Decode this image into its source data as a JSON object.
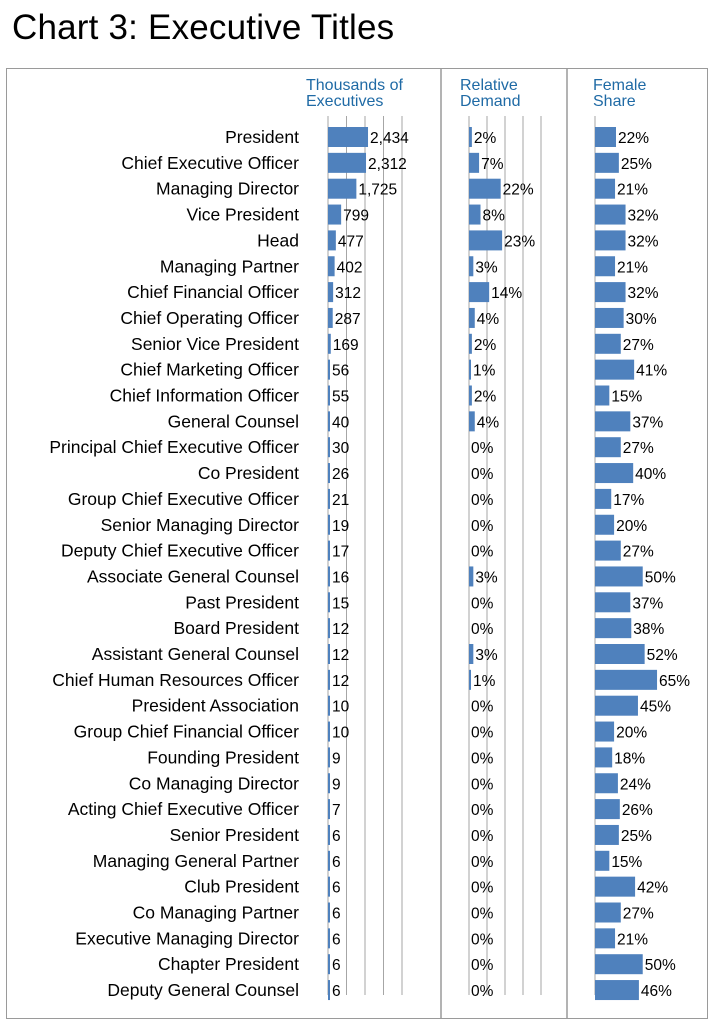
{
  "chart_data": {
    "type": "bar",
    "title": "Chart 3: Executive Titles",
    "categories": [
      "President",
      "Chief Executive Officer",
      "Managing Director",
      "Vice President",
      "Head",
      "Managing Partner",
      "Chief Financial Officer",
      "Chief Operating Officer",
      "Senior Vice President",
      "Chief Marketing Officer",
      "Chief Information Officer",
      "General Counsel",
      "Principal Chief Executive Officer",
      "Co President",
      "Group Chief Executive Officer",
      "Senior Managing Director",
      "Deputy Chief Executive Officer",
      "Associate General Counsel",
      "Past President",
      "Board President",
      "Assistant General Counsel",
      "Chief Human Resources Officer",
      "President Association",
      "Group Chief Financial Officer",
      "Founding President",
      "Co Managing Director",
      "Acting Chief Executive Officer",
      "Senior President",
      "Managing General Partner",
      "Club President",
      "Co Managing Partner",
      "Executive Managing Director",
      "Chapter President",
      "Deputy General Counsel"
    ],
    "series": [
      {
        "name": "Thousands of Executives",
        "values": [
          2434,
          2312,
          1725,
          799,
          477,
          402,
          312,
          287,
          169,
          56,
          55,
          40,
          30,
          26,
          21,
          19,
          17,
          16,
          15,
          12,
          12,
          12,
          10,
          10,
          9,
          9,
          7,
          6,
          6,
          6,
          6,
          6,
          6,
          6
        ],
        "labels": [
          "2,434",
          "2,312",
          "1,725",
          "799",
          "477",
          "402",
          "312",
          "287",
          "169",
          "56",
          "55",
          "40",
          "30",
          "26",
          "21",
          "19",
          "17",
          "16",
          "15",
          "12",
          "12",
          "12",
          "10",
          "10",
          "9",
          "9",
          "7",
          "6",
          "6",
          "6",
          "6",
          "6",
          "6",
          "6"
        ],
        "xlim": [
          0,
          4500
        ]
      },
      {
        "name": "Relative Demand",
        "values": [
          2,
          7,
          22,
          8,
          23,
          3,
          14,
          4,
          2,
          1,
          2,
          4,
          0,
          0,
          0,
          0,
          0,
          3,
          0,
          0,
          3,
          1,
          0,
          0,
          0,
          0,
          0,
          0,
          0,
          0,
          0,
          0,
          0,
          0
        ],
        "labels": [
          "2%",
          "7%",
          "22%",
          "8%",
          "23%",
          "3%",
          "14%",
          "4%",
          "2%",
          "1%",
          "2%",
          "4%",
          "0%",
          "0%",
          "0%",
          "0%",
          "0%",
          "3%",
          "0%",
          "0%",
          "3%",
          "1%",
          "0%",
          "0%",
          "0%",
          "0%",
          "0%",
          "0%",
          "0%",
          "0%",
          "0%",
          "0%",
          "0%",
          "0%"
        ],
        "xlim": [
          0,
          50
        ]
      },
      {
        "name": "Female Share",
        "values": [
          22,
          25,
          21,
          32,
          32,
          21,
          32,
          30,
          27,
          41,
          15,
          37,
          27,
          40,
          17,
          20,
          27,
          50,
          37,
          38,
          52,
          65,
          45,
          20,
          18,
          24,
          26,
          25,
          15,
          42,
          27,
          21,
          50,
          46
        ],
        "labels": [
          "22%",
          "25%",
          "21%",
          "32%",
          "32%",
          "21%",
          "32%",
          "30%",
          "27%",
          "41%",
          "15%",
          "37%",
          "27%",
          "40%",
          "17%",
          "20%",
          "27%",
          "50%",
          "37%",
          "38%",
          "52%",
          "65%",
          "45%",
          "20%",
          "18%",
          "24%",
          "26%",
          "25%",
          "15%",
          "42%",
          "27%",
          "21%",
          "50%",
          "46%"
        ],
        "xlim": [
          0,
          110
        ]
      }
    ],
    "panel_headers": [
      [
        "Thousands of",
        "Executives"
      ],
      [
        "Relative",
        "Demand"
      ],
      [
        "Female",
        "Share"
      ]
    ],
    "grid": true,
    "bar_color": "#4f81bd"
  }
}
